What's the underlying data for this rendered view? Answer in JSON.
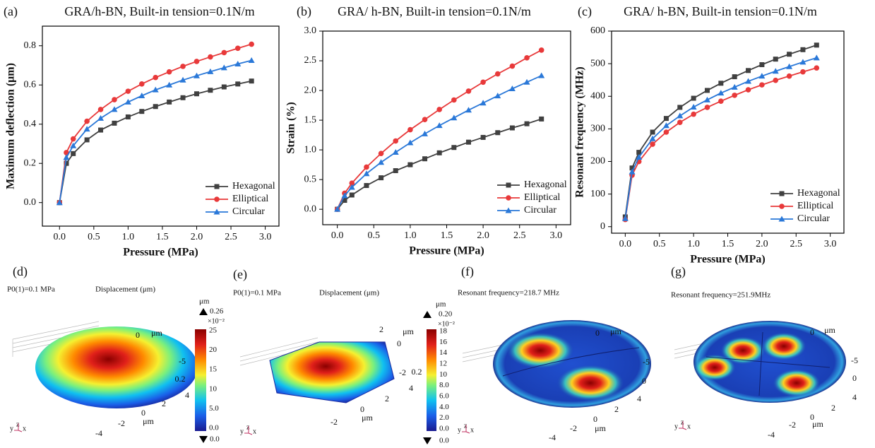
{
  "chart_data": [
    {
      "type": "line",
      "panel_label": "(a)",
      "title": "GRA/h-BN, Built-in tension=0.1N/m",
      "x_label": "Pressure (MPa)",
      "y_label": "Maximum deflection (μm)",
      "x": [
        0,
        0.1,
        0.2,
        0.4,
        0.6,
        0.8,
        1.0,
        1.2,
        1.4,
        1.6,
        1.8,
        2.0,
        2.2,
        2.4,
        2.6,
        2.8
      ],
      "series": [
        {
          "name": "Hexagonal",
          "color": "#404040",
          "marker": "square",
          "values": [
            0,
            0.2,
            0.25,
            0.32,
            0.37,
            0.405,
            0.437,
            0.465,
            0.49,
            0.513,
            0.535,
            0.555,
            0.573,
            0.59,
            0.605,
            0.62
          ]
        },
        {
          "name": "Elliptical",
          "color": "#e8393a",
          "marker": "circle",
          "values": [
            0,
            0.255,
            0.325,
            0.415,
            0.475,
            0.525,
            0.568,
            0.605,
            0.638,
            0.667,
            0.695,
            0.72,
            0.743,
            0.765,
            0.787,
            0.808
          ]
        },
        {
          "name": "Circular",
          "color": "#2a78d8",
          "marker": "triangle",
          "values": [
            0,
            0.23,
            0.29,
            0.375,
            0.43,
            0.475,
            0.513,
            0.545,
            0.575,
            0.6,
            0.625,
            0.647,
            0.668,
            0.688,
            0.707,
            0.725
          ]
        }
      ],
      "xlim": [
        -0.25,
        3.2
      ],
      "ylim": [
        -0.12,
        0.9
      ],
      "xticks": [
        {
          "value": 0,
          "label": "0.0"
        },
        {
          "value": 0.5,
          "label": "0.5"
        },
        {
          "value": 1,
          "label": "1.0"
        },
        {
          "value": 1.5,
          "label": "1.5"
        },
        {
          "value": 2,
          "label": "2.0"
        },
        {
          "value": 2.5,
          "label": "2.5"
        },
        {
          "value": 3,
          "label": "3.0"
        }
      ],
      "yticks": [
        {
          "value": 0,
          "label": "0.0"
        },
        {
          "value": 0.2,
          "label": "0.2"
        },
        {
          "value": 0.4,
          "label": "0.4"
        },
        {
          "value": 0.6,
          "label": "0.6"
        },
        {
          "value": 0.8,
          "label": "0.8"
        }
      ],
      "legend": "lower right"
    },
    {
      "type": "line",
      "panel_label": "(b)",
      "title": "GRA/ h-BN, Built-in tension=0.1N/m",
      "x_label": "Pressure (MPa)",
      "y_label": "Strain (%)",
      "x": [
        0,
        0.1,
        0.2,
        0.4,
        0.6,
        0.8,
        1.0,
        1.2,
        1.4,
        1.6,
        1.8,
        2.0,
        2.2,
        2.4,
        2.6,
        2.8
      ],
      "series": [
        {
          "name": "Hexagonal",
          "color": "#404040",
          "marker": "square",
          "values": [
            0,
            0.15,
            0.24,
            0.4,
            0.53,
            0.65,
            0.75,
            0.85,
            0.95,
            1.04,
            1.13,
            1.21,
            1.29,
            1.37,
            1.44,
            1.52
          ]
        },
        {
          "name": "Elliptical",
          "color": "#e8393a",
          "marker": "circle",
          "values": [
            0,
            0.27,
            0.44,
            0.71,
            0.94,
            1.15,
            1.34,
            1.51,
            1.68,
            1.84,
            1.99,
            2.14,
            2.28,
            2.41,
            2.55,
            2.68
          ]
        },
        {
          "name": "Circular",
          "color": "#2a78d8",
          "marker": "triangle",
          "values": [
            0,
            0.23,
            0.37,
            0.6,
            0.79,
            0.96,
            1.12,
            1.27,
            1.41,
            1.54,
            1.67,
            1.79,
            1.91,
            2.03,
            2.14,
            2.25
          ]
        }
      ],
      "xlim": [
        -0.2,
        3.2
      ],
      "ylim": [
        -0.26,
        3.0
      ],
      "xticks": [
        {
          "value": 0,
          "label": "0.0"
        },
        {
          "value": 0.5,
          "label": "0.5"
        },
        {
          "value": 1,
          "label": "1.0"
        },
        {
          "value": 1.5,
          "label": "1.5"
        },
        {
          "value": 2,
          "label": "2.0"
        },
        {
          "value": 2.5,
          "label": "2.5"
        },
        {
          "value": 3,
          "label": "3.0"
        }
      ],
      "yticks": [
        {
          "value": 0,
          "label": "0.0"
        },
        {
          "value": 0.5,
          "label": "0.5"
        },
        {
          "value": 1,
          "label": "1.0"
        },
        {
          "value": 1.5,
          "label": "1.5"
        },
        {
          "value": 2,
          "label": "2.0"
        },
        {
          "value": 2.5,
          "label": "2.5"
        },
        {
          "value": 3,
          "label": "3.0"
        }
      ],
      "legend": "lower right"
    },
    {
      "type": "line",
      "panel_label": "(c)",
      "title": "GRA/ h-BN, Built-in tension=0.1N/m",
      "x_label": "Pressure (MPa)",
      "y_label": "Resonant frequency (MHz)",
      "x": [
        0,
        0.1,
        0.2,
        0.4,
        0.6,
        0.8,
        1.0,
        1.2,
        1.4,
        1.6,
        1.8,
        2.0,
        2.2,
        2.4,
        2.6,
        2.8
      ],
      "series": [
        {
          "name": "Hexagonal",
          "color": "#404040",
          "marker": "square",
          "values": [
            30,
            180,
            228,
            290,
            332,
            366,
            394,
            418,
            440,
            460,
            479,
            497,
            514,
            529,
            543,
            557
          ]
        },
        {
          "name": "Elliptical",
          "color": "#e8393a",
          "marker": "circle",
          "values": [
            22,
            158,
            200,
            253,
            290,
            320,
            345,
            366,
            385,
            403,
            420,
            435,
            449,
            462,
            475,
            487
          ]
        },
        {
          "name": "Circular",
          "color": "#2a78d8",
          "marker": "triangle",
          "values": [
            25,
            168,
            213,
            270,
            310,
            340,
            367,
            389,
            410,
            428,
            446,
            462,
            477,
            491,
            505,
            518
          ]
        }
      ],
      "xlim": [
        -0.2,
        3.2
      ],
      "ylim": [
        -20,
        600
      ],
      "xticks": [
        {
          "value": 0,
          "label": "0.0"
        },
        {
          "value": 0.5,
          "label": "0.5"
        },
        {
          "value": 1,
          "label": "1.0"
        },
        {
          "value": 1.5,
          "label": "1.5"
        },
        {
          "value": 2,
          "label": "2.0"
        },
        {
          "value": 2.5,
          "label": "2.5"
        },
        {
          "value": 3,
          "label": "3.0"
        }
      ],
      "yticks": [
        0,
        100,
        200,
        300,
        400,
        500,
        600
      ],
      "legend": "lower right"
    }
  ],
  "panels": [
    {
      "label": "(d)",
      "headers": [
        "P0(1)=0.1 MPa",
        "Displacement (μm)"
      ],
      "colorbar": {
        "unit": "μm",
        "max": "0.26",
        "exponent": "×10⁻²",
        "ticks": [
          "25",
          "20",
          "15",
          "10",
          "5.0",
          "0.0"
        ],
        "min": "0.0"
      },
      "axis_labels": [
        "0",
        "μm",
        "-5",
        "0.2",
        "4",
        "2",
        "0",
        "μm",
        "-2",
        "-4"
      ],
      "triad": [
        "y",
        "z",
        "x"
      ]
    },
    {
      "label": "(e)",
      "headers": [
        "P0(1)=0.1 MPa",
        "Displacement (μm)"
      ],
      "colorbar": {
        "unit": "μm",
        "max": "0.20",
        "exponent": "×10⁻²",
        "ticks": [
          "18",
          "16",
          "14",
          "12",
          "10",
          "8.0",
          "6.0",
          "4.0",
          "2.0",
          "0.0"
        ],
        "min": "0.0"
      },
      "axis_labels": [
        "2",
        "μm",
        "0",
        "-2",
        "0.2",
        "4",
        "2",
        "0",
        "μm",
        "-2"
      ],
      "triad": [
        "y",
        "z",
        "x"
      ]
    },
    {
      "label": "(f)",
      "headers": [
        "Resonant frequency=218.7 MHz"
      ],
      "axis_labels": [
        "0",
        "μm",
        "-5",
        "0",
        "4",
        "2",
        "0",
        "μm",
        "-2",
        "-4"
      ],
      "triad": [
        "y",
        "z",
        "x"
      ]
    },
    {
      "label": "(g)",
      "headers": [
        "Resonant frequency=251.9MHz"
      ],
      "axis_labels": [
        "0",
        "μm",
        "-5",
        "0",
        "4",
        "2",
        "0",
        "μm",
        "-2",
        "-4"
      ],
      "triad": [
        "y",
        "z",
        "x"
      ]
    }
  ]
}
